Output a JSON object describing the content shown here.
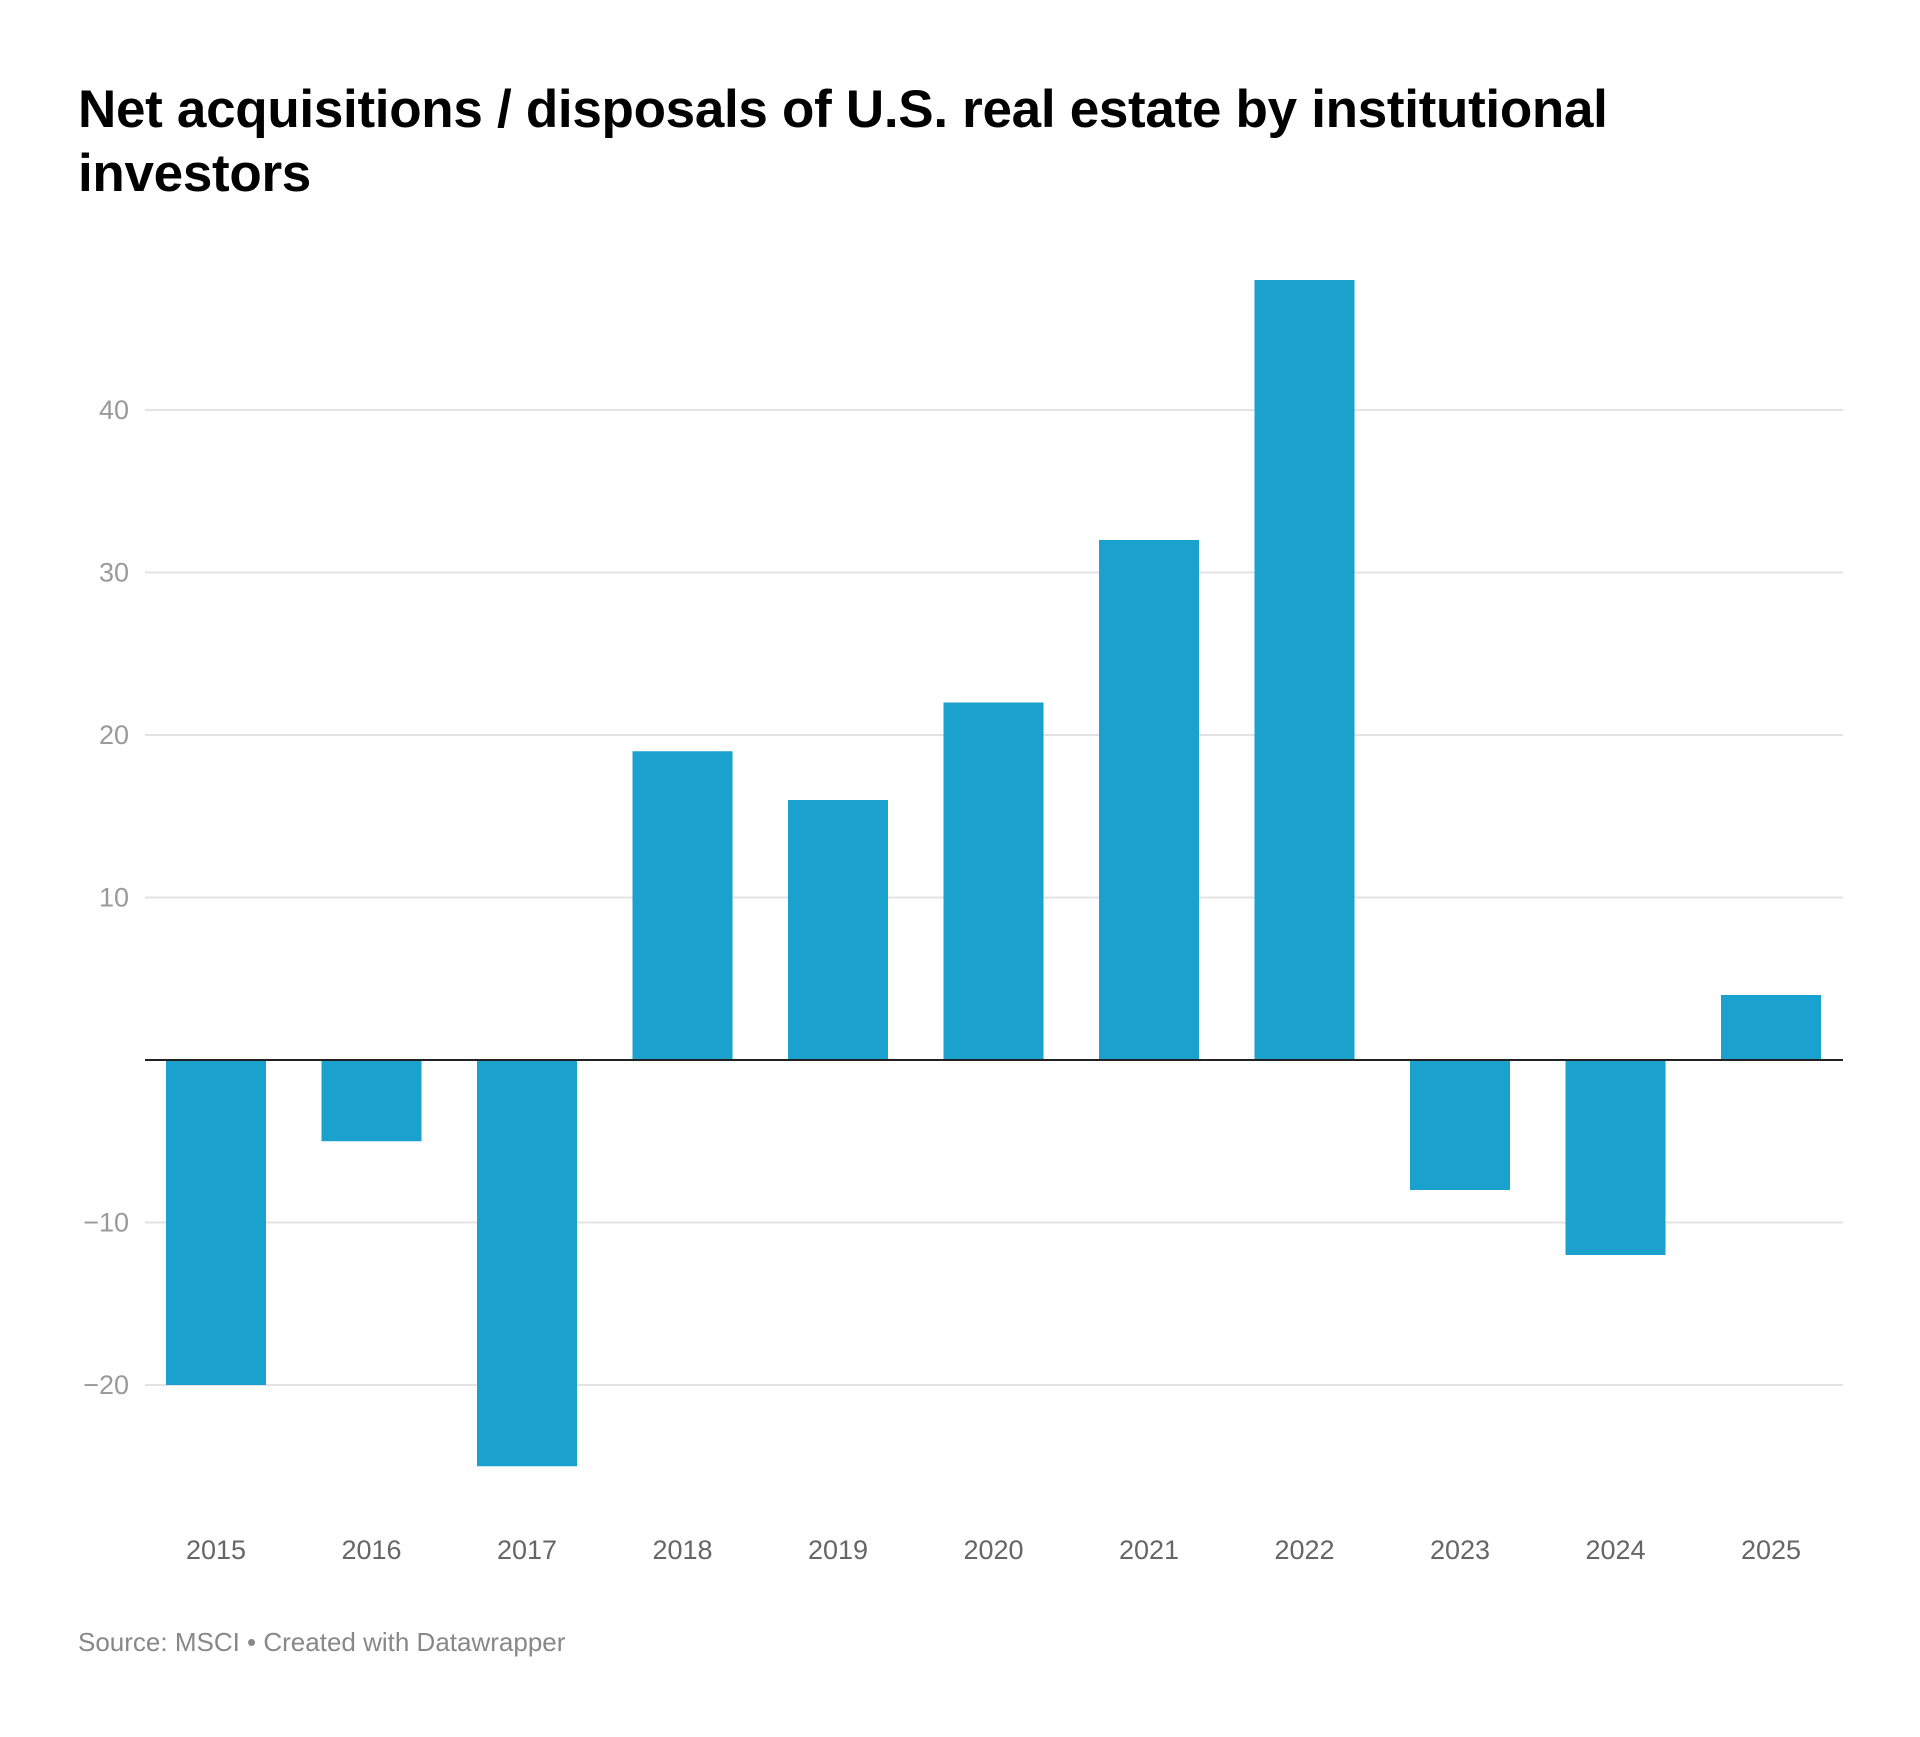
{
  "header": {
    "title": "Net acquisitions / disposals of U.S. real estate by institutional investors"
  },
  "footer": {
    "source_text": "Source: MSCI • Created with Datawrapper"
  },
  "colors": {
    "bar": "#1aa1ce",
    "baseline": "#222222",
    "grid": "#e3e3e3"
  },
  "chart_data": {
    "type": "bar",
    "title": "Net acquisitions / disposals of U.S. real estate by institutional investors",
    "xlabel": "",
    "ylabel": "",
    "categories": [
      "2015",
      "2016",
      "2017",
      "2018",
      "2019",
      "2020",
      "2021",
      "2022",
      "2023",
      "2024",
      "2025"
    ],
    "values": [
      -20,
      -5,
      -25,
      19,
      16,
      22,
      32,
      48,
      -8,
      -12,
      4
    ],
    "ylim": [
      -27.5,
      50
    ],
    "yticks": [
      -20,
      -10,
      10,
      20,
      30,
      40
    ],
    "ytick_labels": [
      "−20",
      "−10",
      "10",
      "20",
      "30",
      "40"
    ],
    "grid": true,
    "legend": "none",
    "source": "Source: MSCI"
  }
}
